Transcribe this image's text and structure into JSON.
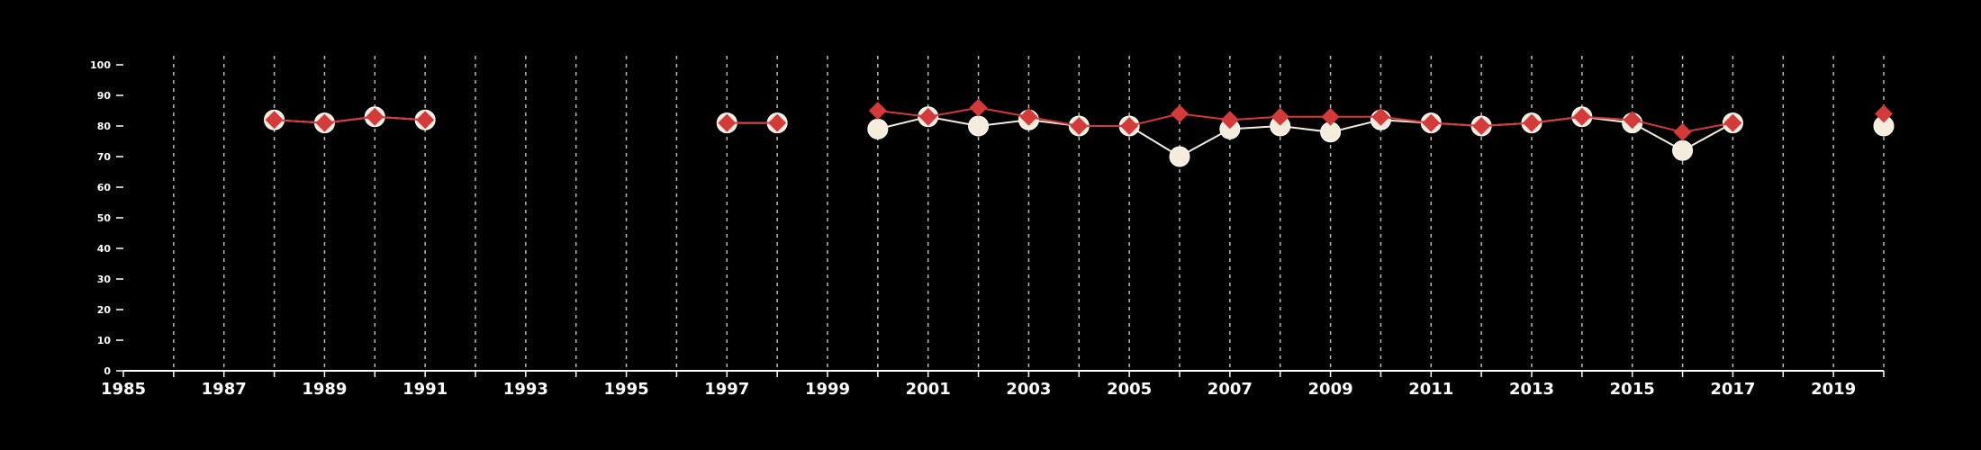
{
  "chart_data": {
    "type": "line",
    "title": "",
    "xlabel": "",
    "ylabel": "",
    "xlim": [
      1985,
      2020
    ],
    "ylim": [
      0,
      100
    ],
    "x_ticks": [
      1985,
      1987,
      1989,
      1991,
      1993,
      1995,
      1997,
      1999,
      2001,
      2003,
      2005,
      2007,
      2009,
      2011,
      2013,
      2015,
      2017,
      2019
    ],
    "y_ticks": [
      0,
      10,
      20,
      30,
      40,
      50,
      60,
      70,
      80,
      90,
      100
    ],
    "grid": "vertical dashed, one line per year",
    "legend": "none",
    "background_color": "#000000",
    "axis_color": "#ffffff",
    "grid_color": "#bbbbbb",
    "series": [
      {
        "marker": "circle",
        "color": "#f5ecdc",
        "line_color": "#f5ecdc",
        "points": [
          {
            "x": 1988,
            "y": 82
          },
          {
            "x": 1989,
            "y": 81
          },
          {
            "x": 1990,
            "y": 83
          },
          {
            "x": 1991,
            "y": 82
          },
          {
            "x": 1997,
            "y": 81
          },
          {
            "x": 1998,
            "y": 81
          },
          {
            "x": 2000,
            "y": 79
          },
          {
            "x": 2001,
            "y": 83
          },
          {
            "x": 2002,
            "y": 80
          },
          {
            "x": 2003,
            "y": 82
          },
          {
            "x": 2004,
            "y": 80
          },
          {
            "x": 2005,
            "y": 80
          },
          {
            "x": 2006,
            "y": 70
          },
          {
            "x": 2007,
            "y": 79
          },
          {
            "x": 2008,
            "y": 80
          },
          {
            "x": 2009,
            "y": 78
          },
          {
            "x": 2010,
            "y": 82
          },
          {
            "x": 2011,
            "y": 81
          },
          {
            "x": 2012,
            "y": 80
          },
          {
            "x": 2013,
            "y": 81
          },
          {
            "x": 2014,
            "y": 83
          },
          {
            "x": 2015,
            "y": 81
          },
          {
            "x": 2016,
            "y": 72
          },
          {
            "x": 2017,
            "y": 81
          },
          {
            "x": 2020,
            "y": 80
          }
        ]
      },
      {
        "marker": "diamond",
        "color": "#d43a3a",
        "line_color": "#d43a3a",
        "points": [
          {
            "x": 1988,
            "y": 82
          },
          {
            "x": 1989,
            "y": 81
          },
          {
            "x": 1990,
            "y": 83
          },
          {
            "x": 1991,
            "y": 82
          },
          {
            "x": 1997,
            "y": 81
          },
          {
            "x": 1998,
            "y": 81
          },
          {
            "x": 2000,
            "y": 85
          },
          {
            "x": 2001,
            "y": 83
          },
          {
            "x": 2002,
            "y": 86
          },
          {
            "x": 2003,
            "y": 83
          },
          {
            "x": 2004,
            "y": 80
          },
          {
            "x": 2005,
            "y": 80
          },
          {
            "x": 2006,
            "y": 84
          },
          {
            "x": 2007,
            "y": 82
          },
          {
            "x": 2008,
            "y": 83
          },
          {
            "x": 2009,
            "y": 83
          },
          {
            "x": 2010,
            "y": 83
          },
          {
            "x": 2011,
            "y": 81
          },
          {
            "x": 2012,
            "y": 80
          },
          {
            "x": 2013,
            "y": 81
          },
          {
            "x": 2014,
            "y": 83
          },
          {
            "x": 2015,
            "y": 82
          },
          {
            "x": 2016,
            "y": 78
          },
          {
            "x": 2017,
            "y": 81
          },
          {
            "x": 2020,
            "y": 84
          }
        ]
      }
    ]
  }
}
